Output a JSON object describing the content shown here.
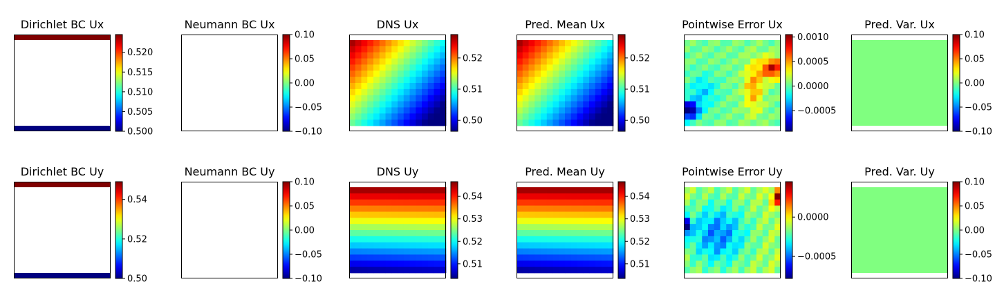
{
  "figure": {
    "colormap": "jet",
    "background": "#ffffff"
  },
  "chart_data": [
    {
      "type": "heatmap",
      "title": "Dirichlet BC Ux",
      "grid": false,
      "colorbar": {
        "range": [
          0.5,
          0.5245
        ],
        "ticks": [
          0.5,
          0.505,
          0.51,
          0.515,
          0.52
        ],
        "tick_labels": [
          "0.500",
          "0.505",
          "0.510",
          "0.515",
          "0.520"
        ]
      },
      "layout": "top-bottom",
      "values": [
        0.5245,
        0.5
      ]
    },
    {
      "type": "heatmap",
      "title": "Neumann BC Ux",
      "grid": false,
      "colorbar": {
        "range": [
          -0.1,
          0.1
        ],
        "ticks": [
          -0.1,
          -0.05,
          0,
          0.05,
          0.1
        ],
        "tick_labels": [
          "−0.10",
          "−0.05",
          "0.00",
          "0.05",
          "0.10"
        ]
      },
      "layout": "empty",
      "values": []
    },
    {
      "type": "heatmap",
      "title": "DNS Ux",
      "grid": false,
      "colorbar": {
        "range": [
          0.4965,
          0.5275
        ],
        "ticks": [
          0.5,
          0.51,
          0.52
        ],
        "tick_labels": [
          "0.50",
          "0.51",
          "0.52"
        ]
      },
      "layout": "field-diagonal",
      "nx": 16,
      "ny": 14,
      "values": [
        0.527,
        0.4965
      ]
    },
    {
      "type": "heatmap",
      "title": "Pred. Mean Ux",
      "grid": false,
      "colorbar": {
        "range": [
          0.4965,
          0.5275
        ],
        "ticks": [
          0.5,
          0.51,
          0.52
        ],
        "tick_labels": [
          "0.50",
          "0.51",
          "0.52"
        ]
      },
      "layout": "field-diagonal",
      "nx": 16,
      "ny": 14,
      "values": [
        0.527,
        0.4965
      ]
    },
    {
      "type": "heatmap",
      "title": "Pointwise Error Ux",
      "grid": false,
      "colorbar": {
        "range": [
          -0.00092,
          0.00105
        ],
        "ticks": [
          -0.0005,
          0,
          0.0005,
          0.001
        ],
        "tick_labels": [
          "−0.0005",
          "0.0000",
          "0.0005",
          "0.0010"
        ]
      },
      "layout": "field-error-x",
      "nx": 16,
      "ny": 14,
      "values": [
        0.00105,
        -0.00092
      ]
    },
    {
      "type": "heatmap",
      "title": "Pred. Var. Ux",
      "grid": false,
      "colorbar": {
        "range": [
          -0.1,
          0.1
        ],
        "ticks": [
          -0.1,
          -0.05,
          0,
          0.05,
          0.1
        ],
        "tick_labels": [
          "−0.10",
          "−0.05",
          "0.00",
          "0.05",
          "0.10"
        ]
      },
      "layout": "field-uniform",
      "values": [
        0
      ]
    },
    {
      "type": "heatmap",
      "title": "Dirichlet BC Uy",
      "grid": false,
      "colorbar": {
        "range": [
          0.5,
          0.549
        ],
        "ticks": [
          0.5,
          0.52,
          0.54
        ],
        "tick_labels": [
          "0.50",
          "0.52",
          "0.54"
        ]
      },
      "layout": "top-bottom",
      "values": [
        0.549,
        0.5
      ]
    },
    {
      "type": "heatmap",
      "title": "Neumann BC Uy",
      "grid": false,
      "colorbar": {
        "range": [
          -0.1,
          0.1
        ],
        "ticks": [
          -0.1,
          -0.05,
          0,
          0.05,
          0.1
        ],
        "tick_labels": [
          "−0.10",
          "−0.05",
          "0.00",
          "0.05",
          "0.10"
        ]
      },
      "layout": "empty",
      "values": []
    },
    {
      "type": "heatmap",
      "title": "DNS Uy",
      "grid": false,
      "colorbar": {
        "range": [
          0.5035,
          0.5465
        ],
        "ticks": [
          0.51,
          0.52,
          0.53,
          0.54
        ],
        "tick_labels": [
          "0.51",
          "0.52",
          "0.53",
          "0.54"
        ]
      },
      "layout": "field-vertical",
      "nx": 16,
      "ny": 14,
      "values": [
        0.546,
        0.5035
      ]
    },
    {
      "type": "heatmap",
      "title": "Pred. Mean Uy",
      "grid": false,
      "colorbar": {
        "range": [
          0.5035,
          0.5465
        ],
        "ticks": [
          0.51,
          0.52,
          0.53,
          0.54
        ],
        "tick_labels": [
          "0.51",
          "0.52",
          "0.53",
          "0.54"
        ]
      },
      "layout": "field-vertical",
      "nx": 16,
      "ny": 14,
      "values": [
        0.546,
        0.5035
      ]
    },
    {
      "type": "heatmap",
      "title": "Pointwise Error Uy",
      "grid": false,
      "colorbar": {
        "range": [
          -0.00078,
          0.00045
        ],
        "ticks": [
          -0.0005,
          0
        ],
        "tick_labels": [
          "−0.0005",
          "0.0000"
        ]
      },
      "layout": "field-error-y",
      "nx": 16,
      "ny": 14,
      "values": [
        0.00045,
        -0.00078
      ]
    },
    {
      "type": "heatmap",
      "title": "Pred. Var. Uy",
      "grid": false,
      "colorbar": {
        "range": [
          -0.1,
          0.1
        ],
        "ticks": [
          -0.1,
          -0.05,
          0,
          0.05,
          0.1
        ],
        "tick_labels": [
          "−0.10",
          "−0.05",
          "0.00",
          "0.05",
          "0.10"
        ]
      },
      "layout": "field-uniform",
      "values": [
        0
      ]
    }
  ]
}
